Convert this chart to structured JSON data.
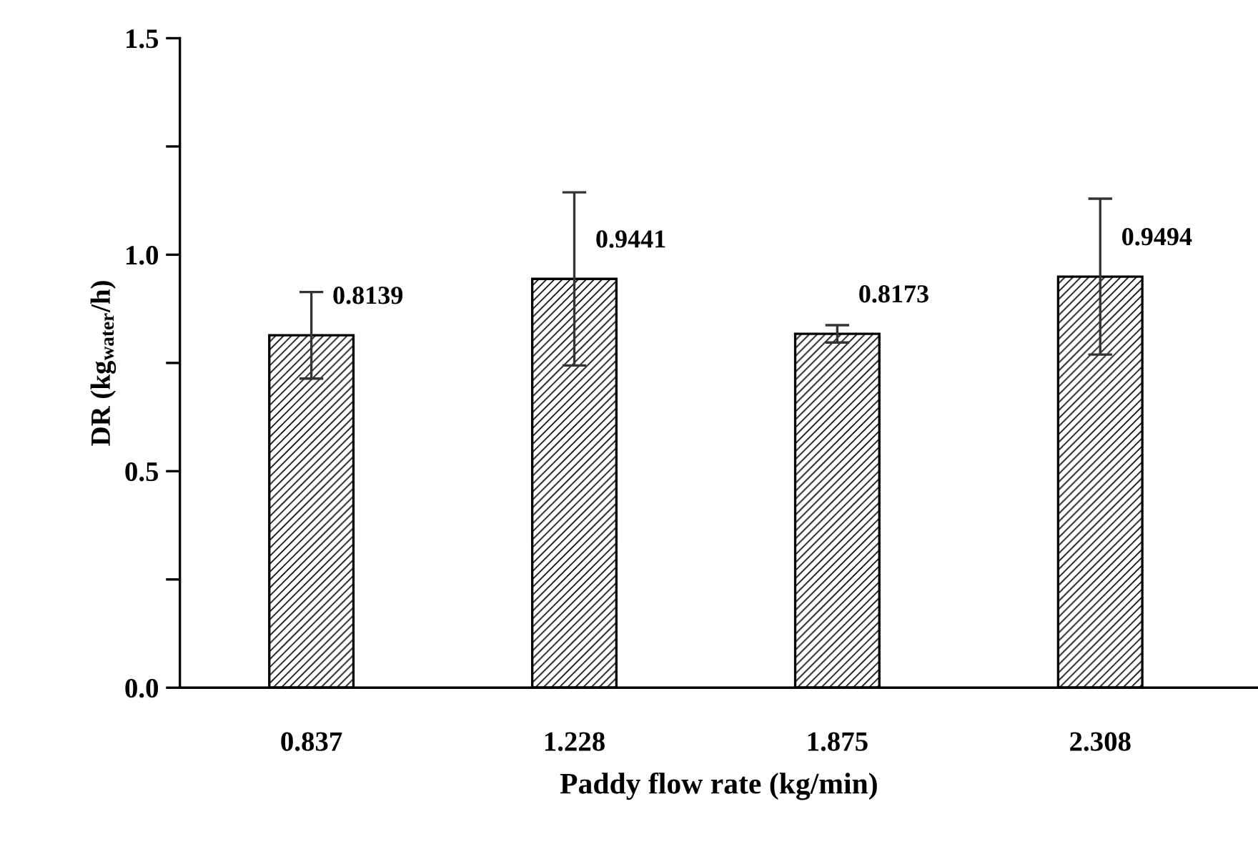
{
  "chart_data": {
    "type": "bar",
    "xlabel": "Paddy flow rate (kg/min)",
    "ylabel": "DR (kg$_{water}$/h)",
    "categories": [
      "0.837",
      "1.228",
      "1.875",
      "2.308"
    ],
    "values": [
      0.8139,
      0.9441,
      0.8173,
      0.9494
    ],
    "errors": [
      0.1,
      0.2,
      0.02,
      0.18
    ],
    "color": "#000000",
    "ylim": [
      0,
      1.5
    ],
    "yticks": [
      {
        "value": 0.0,
        "label": "0.0"
      },
      {
        "value": 0.25,
        "label": null
      },
      {
        "value": 0.5,
        "label": "0.5"
      },
      {
        "value": 0.75,
        "label": null
      },
      {
        "value": 1.0,
        "label": "1.0"
      },
      {
        "value": 1.25,
        "label": null
      },
      {
        "value": 1.5,
        "label": "1.5"
      }
    ],
    "data_labels": true,
    "grid": false,
    "legend": false
  }
}
